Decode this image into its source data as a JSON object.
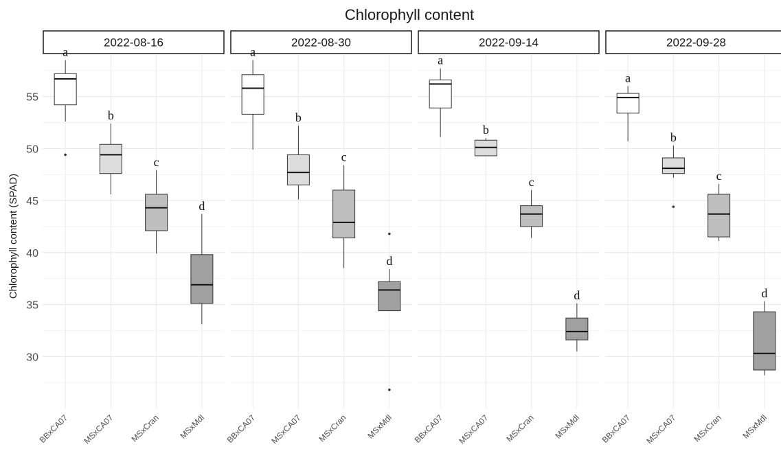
{
  "chart_data": {
    "type": "box",
    "title": "Chlorophyll content",
    "ylabel": "Chlorophyll content (SPAD)",
    "xlabel": "",
    "ylim": [
      25,
      59
    ],
    "yticks": [
      30,
      35,
      40,
      45,
      50,
      55
    ],
    "grid": true,
    "legend": "none",
    "categories": [
      "BBxCA07",
      "MSxCA07",
      "MSxCran",
      "MSxMdl"
    ],
    "fill_colors": [
      "#ffffff",
      "#dcdcdc",
      "#bebebe",
      "#a0a0a0"
    ],
    "panels": [
      {
        "label": "2022-08-16",
        "boxes": [
          {
            "category": "BBxCA07",
            "whisker_low": 52.6,
            "q1": 54.2,
            "median": 56.7,
            "q3": 57.2,
            "whisker_high": 58.5,
            "outliers": [
              49.4
            ],
            "letter": "a"
          },
          {
            "category": "MSxCA07",
            "whisker_low": 45.6,
            "q1": 47.6,
            "median": 49.4,
            "q3": 50.4,
            "whisker_high": 52.4,
            "outliers": [],
            "letter": "b"
          },
          {
            "category": "MSxCran",
            "whisker_low": 39.9,
            "q1": 42.1,
            "median": 44.3,
            "q3": 45.6,
            "whisker_high": 47.9,
            "outliers": [],
            "letter": "c"
          },
          {
            "category": "MSxMdl",
            "whisker_low": 33.1,
            "q1": 35.1,
            "median": 36.9,
            "q3": 39.8,
            "whisker_high": 43.7,
            "outliers": [],
            "letter": "d"
          }
        ]
      },
      {
        "label": "2022-08-30",
        "boxes": [
          {
            "category": "BBxCA07",
            "whisker_low": 49.9,
            "q1": 53.3,
            "median": 55.8,
            "q3": 57.1,
            "whisker_high": 58.5,
            "outliers": [],
            "letter": "a"
          },
          {
            "category": "MSxCA07",
            "whisker_low": 45.1,
            "q1": 46.5,
            "median": 47.7,
            "q3": 49.4,
            "whisker_high": 52.2,
            "outliers": [],
            "letter": "b"
          },
          {
            "category": "MSxCran",
            "whisker_low": 38.5,
            "q1": 41.4,
            "median": 42.9,
            "q3": 46.0,
            "whisker_high": 48.4,
            "outliers": [],
            "letter": "c"
          },
          {
            "category": "MSxMdl",
            "whisker_low": 34.4,
            "q1": 34.4,
            "median": 36.4,
            "q3": 37.2,
            "whisker_high": 38.4,
            "outliers": [
              41.8,
              26.8
            ],
            "letter": "d"
          }
        ]
      },
      {
        "label": "2022-09-14",
        "boxes": [
          {
            "category": "BBxCA07",
            "whisker_low": 51.1,
            "q1": 53.9,
            "median": 56.2,
            "q3": 56.6,
            "whisker_high": 57.7,
            "outliers": [],
            "letter": "a"
          },
          {
            "category": "MSxCA07",
            "whisker_low": 49.3,
            "q1": 49.3,
            "median": 50.1,
            "q3": 50.8,
            "whisker_high": 51.0,
            "outliers": [],
            "letter": "b"
          },
          {
            "category": "MSxCran",
            "whisker_low": 41.4,
            "q1": 42.5,
            "median": 43.7,
            "q3": 44.5,
            "whisker_high": 46.0,
            "outliers": [],
            "letter": "c"
          },
          {
            "category": "MSxMdl",
            "whisker_low": 30.5,
            "q1": 31.6,
            "median": 32.4,
            "q3": 33.7,
            "whisker_high": 35.1,
            "outliers": [],
            "letter": "d"
          }
        ]
      },
      {
        "label": "2022-09-28",
        "boxes": [
          {
            "category": "BBxCA07",
            "whisker_low": 50.7,
            "q1": 53.4,
            "median": 54.9,
            "q3": 55.3,
            "whisker_high": 56.0,
            "outliers": [],
            "letter": "a"
          },
          {
            "category": "MSxCA07",
            "whisker_low": 47.2,
            "q1": 47.6,
            "median": 48.1,
            "q3": 49.1,
            "whisker_high": 50.3,
            "outliers": [
              44.4
            ],
            "letter": "b"
          },
          {
            "category": "MSxCran",
            "whisker_low": 41.1,
            "q1": 41.5,
            "median": 43.7,
            "q3": 45.6,
            "whisker_high": 46.6,
            "outliers": [],
            "letter": "c"
          },
          {
            "category": "MSxMdl",
            "whisker_low": 28.2,
            "q1": 28.7,
            "median": 30.3,
            "q3": 34.3,
            "whisker_high": 35.3,
            "outliers": [],
            "letter": "d"
          }
        ]
      }
    ]
  }
}
